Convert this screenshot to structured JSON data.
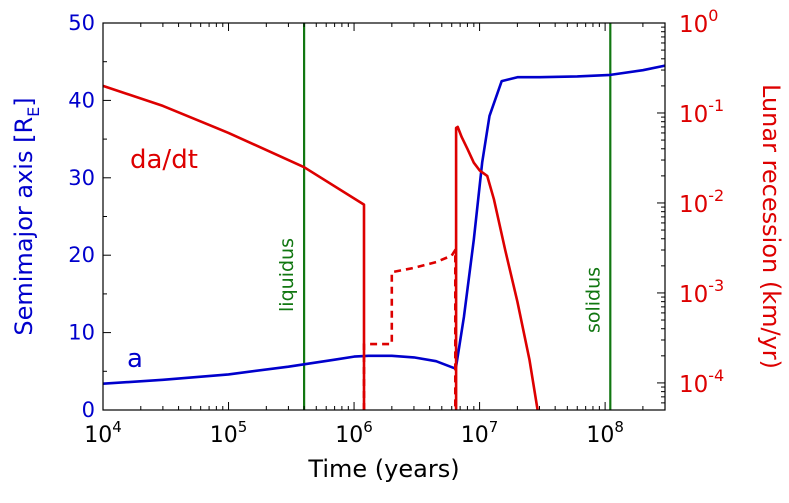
{
  "chart_data": {
    "type": "line",
    "xlabel": "Time (years)",
    "ylabel_left": "Semimajor axis [R",
    "ylabel_left_sub": "E",
    "ylabel_left_close": "]",
    "ylabel_right": "Lunar recession (km/yr)",
    "x_scale": "log",
    "xlim": [
      10000,
      300000000
    ],
    "ylim_left": [
      0,
      50
    ],
    "ylim_right": [
      5e-05,
      1
    ],
    "y_right_scale": "log",
    "x_ticks": [
      {
        "base": "10",
        "exp": "4",
        "value": 10000
      },
      {
        "base": "10",
        "exp": "5",
        "value": 100000
      },
      {
        "base": "10",
        "exp": "6",
        "value": 1000000
      },
      {
        "base": "10",
        "exp": "7",
        "value": 10000000
      },
      {
        "base": "10",
        "exp": "8",
        "value": 100000000
      }
    ],
    "y_left_ticks": [
      "0",
      "10",
      "20",
      "30",
      "40",
      "50"
    ],
    "y_right_ticks": [
      {
        "base": "10",
        "exp": "-4",
        "value": 0.0001
      },
      {
        "base": "10",
        "exp": "-3",
        "value": 0.001
      },
      {
        "base": "10",
        "exp": "-2",
        "value": 0.01
      },
      {
        "base": "10",
        "exp": "-1",
        "value": 0.1
      },
      {
        "base": "10",
        "exp": "0",
        "value": 1
      }
    ],
    "colors": {
      "a": "#0000cc",
      "dadt": "#dd0000",
      "vline": "#117711"
    },
    "series": [
      {
        "name": "a",
        "axis": "left",
        "x": [
          10000,
          30000,
          100000,
          300000,
          700000,
          1000000,
          1300000,
          2000000,
          3000000,
          4500000,
          6300000,
          6500000,
          7500000,
          9000000,
          10500000,
          12000000,
          15000000,
          20000000,
          30000000,
          60000000,
          110000000,
          200000000,
          300000000
        ],
        "y": [
          3.4,
          3.9,
          4.6,
          5.6,
          6.5,
          6.9,
          7.0,
          7.0,
          6.8,
          6.3,
          5.4,
          5.6,
          12,
          22,
          32,
          38,
          42.5,
          43.0,
          43.0,
          43.1,
          43.3,
          43.9,
          44.5
        ]
      },
      {
        "name": "da/dt",
        "axis": "right",
        "x": [
          10000,
          30000,
          100000,
          400000,
          1200000,
          1200000
        ],
        "y": [
          0.2,
          0.12,
          0.06,
          0.025,
          0.0096,
          5e-05
        ]
      },
      {
        "name": "da/dt-dashed",
        "axis": "right",
        "dashed": true,
        "x": [
          1200000,
          1200000,
          2000000,
          2000000,
          3000000,
          4500000,
          6000000,
          6400000,
          6400000
        ],
        "y": [
          5e-05,
          0.00027,
          0.00027,
          0.0017,
          0.0019,
          0.0022,
          0.0026,
          0.003,
          5e-05
        ]
      },
      {
        "name": "da/dt-late",
        "axis": "right",
        "x": [
          6500000,
          6500000,
          6700000,
          7200000,
          8000000,
          9000000,
          10000000,
          11500000,
          13000000,
          16000000,
          20000000,
          25000000,
          29000000
        ],
        "y": [
          5e-05,
          0.068,
          0.07,
          0.054,
          0.04,
          0.028,
          0.023,
          0.02,
          0.011,
          0.003,
          0.0008,
          0.00018,
          5e-05
        ]
      }
    ],
    "annotations": [
      {
        "text": "liquidus",
        "x": 400000,
        "kind": "vline"
      },
      {
        "text": "solidus",
        "x": 110000000,
        "kind": "vline"
      },
      {
        "text": "da/dt",
        "kind": "series-label"
      },
      {
        "text": "a",
        "kind": "series-label"
      }
    ],
    "grid": false,
    "legend": "none"
  }
}
